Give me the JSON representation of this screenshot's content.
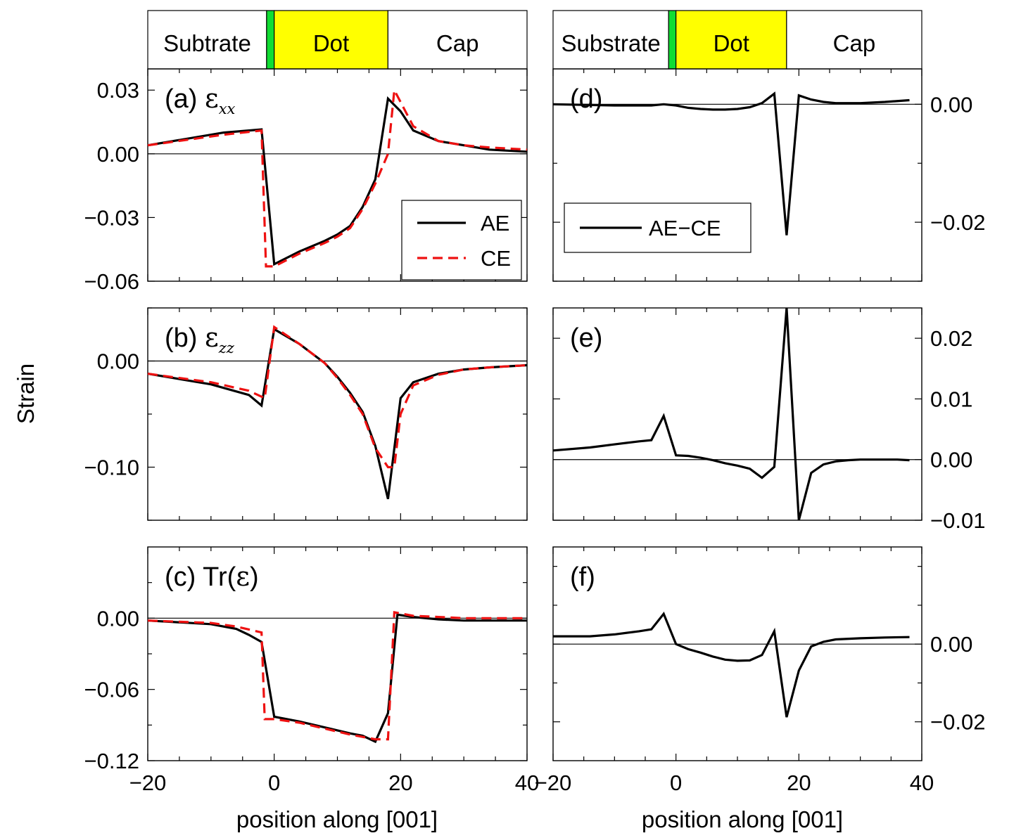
{
  "figure": {
    "ylabel": "Strain",
    "xlabel_left": "position along [001]",
    "xlabel_right": "position along [001]"
  },
  "colors": {
    "ae": "#000000",
    "ce": "#ee1111",
    "wetting_layer": "#11dd33",
    "dot_region": "#ffff00",
    "zero_line": "#000000"
  },
  "regions_left": [
    {
      "name": "Subtrate",
      "x0": -20,
      "x1": -1.2,
      "fill": "#ffffff"
    },
    {
      "name": "",
      "x0": -1.2,
      "x1": 0,
      "fill": "#11dd33"
    },
    {
      "name": "Dot",
      "x0": 0,
      "x1": 18,
      "fill": "#ffff00"
    },
    {
      "name": "Cap",
      "x0": 18,
      "x1": 40,
      "fill": "#ffffff"
    }
  ],
  "regions_right": [
    {
      "name": "Substrate",
      "x0": -20,
      "x1": -1.2,
      "fill": "#ffffff"
    },
    {
      "name": "",
      "x0": -1.2,
      "x1": 0,
      "fill": "#11dd33"
    },
    {
      "name": "Dot",
      "x0": 0,
      "x1": 18,
      "fill": "#ffff00"
    },
    {
      "name": "Cap",
      "x0": 18,
      "x1": 40,
      "fill": "#ffffff"
    }
  ],
  "legend_a": {
    "ae": "AE",
    "ce": "CE"
  },
  "legend_d": {
    "diff": "AE−CE"
  },
  "chart_data": [
    {
      "id": "a",
      "type": "line",
      "label_prefix": "(a) ",
      "label_symbol": "ε",
      "label_sub": "xx",
      "xlim": [
        -20,
        40
      ],
      "ylim": [
        -0.06,
        0.04
      ],
      "yticks": [
        0.03,
        0.0,
        -0.03,
        -0.06
      ],
      "yticklabels": [
        "0.03",
        "0.00",
        "−0.03",
        "−0.06"
      ],
      "xticks": [
        -20,
        0,
        20,
        40
      ],
      "xticklabels": [
        "",
        "",
        "",
        ""
      ],
      "series": [
        {
          "name": "AE",
          "style": "solid",
          "x": [
            -20,
            -8,
            -2,
            0,
            4,
            8,
            10,
            12,
            14,
            16,
            18,
            20,
            22,
            26,
            30,
            34,
            40
          ],
          "y": [
            0.004,
            0.01,
            0.0115,
            -0.052,
            -0.046,
            -0.041,
            -0.038,
            -0.034,
            -0.025,
            -0.012,
            0.026,
            0.02,
            0.011,
            0.006,
            0.004,
            0.002,
            0.001
          ]
        },
        {
          "name": "CE",
          "style": "dashed",
          "x": [
            -20,
            -8,
            -2,
            -1.3,
            0,
            4,
            8,
            10,
            12,
            14,
            16,
            18,
            19,
            22,
            26,
            30,
            34,
            40
          ],
          "y": [
            0.004,
            0.009,
            0.011,
            -0.053,
            -0.053,
            -0.047,
            -0.042,
            -0.039,
            -0.035,
            -0.026,
            -0.014,
            0.0,
            0.03,
            0.013,
            0.006,
            0.004,
            0.003,
            0.002
          ]
        }
      ]
    },
    {
      "id": "b",
      "type": "line",
      "label_prefix": "(b) ",
      "label_symbol": "ε",
      "label_sub": "zz",
      "xlim": [
        -20,
        40
      ],
      "ylim": [
        -0.15,
        0.05
      ],
      "yticks": [
        0.0,
        -0.1
      ],
      "yticklabels": [
        "0.00",
        "−0.10"
      ],
      "minor_yticks": [
        0.05,
        -0.05,
        -0.15
      ],
      "xticks": [
        -20,
        0,
        20,
        40
      ],
      "xticklabels": [
        "",
        "",
        "",
        ""
      ],
      "series": [
        {
          "name": "AE",
          "style": "solid",
          "x": [
            -20,
            -10,
            -4,
            -2,
            0,
            4,
            8,
            10,
            12,
            14,
            16,
            18,
            20,
            22,
            26,
            30,
            34,
            40
          ],
          "y": [
            -0.012,
            -0.022,
            -0.032,
            -0.042,
            0.03,
            0.016,
            -0.002,
            -0.015,
            -0.03,
            -0.048,
            -0.08,
            -0.13,
            -0.035,
            -0.02,
            -0.012,
            -0.008,
            -0.006,
            -0.004
          ]
        },
        {
          "name": "CE",
          "style": "dashed",
          "x": [
            -20,
            -10,
            -4,
            -1.5,
            0,
            4,
            8,
            10,
            12,
            14,
            16,
            18,
            19,
            20,
            22,
            26,
            30,
            34,
            40
          ],
          "y": [
            -0.012,
            -0.02,
            -0.028,
            -0.035,
            0.032,
            0.016,
            -0.002,
            -0.016,
            -0.032,
            -0.05,
            -0.082,
            -0.1,
            -0.1,
            -0.05,
            -0.023,
            -0.013,
            -0.008,
            -0.006,
            -0.004
          ]
        }
      ]
    },
    {
      "id": "c",
      "type": "line",
      "label_prefix": "(c) Tr(",
      "label_symbol": "ε",
      "label_sub": "",
      "label_suffix": ")",
      "xlim": [
        -20,
        40
      ],
      "ylim": [
        -0.12,
        0.06
      ],
      "yticks": [
        0.0,
        -0.06,
        -0.12
      ],
      "yticklabels": [
        "0.00",
        "−0.06",
        "−0.12"
      ],
      "minor_yticks": [
        0.03,
        -0.03,
        -0.09
      ],
      "xticks": [
        -20,
        0,
        20,
        40
      ],
      "xticklabels": [
        "−20",
        "0",
        "20",
        "40"
      ],
      "series": [
        {
          "name": "AE",
          "style": "solid",
          "x": [
            -20,
            -10,
            -6,
            -4,
            -2,
            0,
            4,
            8,
            12,
            14,
            16,
            18,
            19.5,
            22,
            26,
            30,
            34,
            40
          ],
          "y": [
            -0.002,
            -0.005,
            -0.009,
            -0.014,
            -0.02,
            -0.083,
            -0.087,
            -0.092,
            -0.097,
            -0.099,
            -0.104,
            -0.08,
            0.003,
            0.001,
            -0.001,
            -0.002,
            -0.002,
            -0.002
          ]
        },
        {
          "name": "CE",
          "style": "dashed",
          "x": [
            -20,
            -10,
            -6,
            -2,
            -1.5,
            0,
            4,
            8,
            12,
            14,
            16,
            18,
            19,
            22,
            26,
            30,
            34,
            40
          ],
          "y": [
            -0.002,
            -0.004,
            -0.007,
            -0.012,
            -0.085,
            -0.085,
            -0.088,
            -0.093,
            -0.098,
            -0.1,
            -0.102,
            -0.102,
            0.005,
            0.002,
            0.001,
            0.0,
            0.0,
            0.0
          ]
        }
      ]
    },
    {
      "id": "d",
      "type": "line",
      "label_prefix": "(d)",
      "label_symbol": "",
      "label_sub": "",
      "xlim": [
        -20,
        40
      ],
      "ylim": [
        -0.03,
        0.006
      ],
      "yticks": [
        0.0,
        -0.02
      ],
      "yticklabels": [
        "0.00",
        "−0.02"
      ],
      "minor_yticks": [
        -0.01,
        -0.03
      ],
      "xticks": [
        -20,
        0,
        20,
        40
      ],
      "xticklabels": [
        "",
        "",
        "",
        ""
      ],
      "series": [
        {
          "name": "AE−CE",
          "style": "solid",
          "x": [
            -20,
            -10,
            -4,
            -2,
            0,
            2,
            4,
            6,
            8,
            10,
            12,
            14,
            16,
            18,
            20,
            22,
            24,
            26,
            30,
            34,
            38
          ],
          "y": [
            0.0,
            -0.0002,
            -0.0002,
            0.0,
            -0.0002,
            -0.0006,
            -0.0008,
            -0.0009,
            -0.0009,
            -0.0008,
            -0.0005,
            0.0002,
            0.0018,
            -0.0222,
            0.0015,
            0.0008,
            0.0004,
            0.0002,
            0.0002,
            0.0004,
            0.0007
          ]
        }
      ]
    },
    {
      "id": "e",
      "type": "line",
      "label_prefix": "(e)",
      "label_symbol": "",
      "label_sub": "",
      "xlim": [
        -20,
        40
      ],
      "ylim": [
        -0.01,
        0.025
      ],
      "yticks": [
        0.02,
        0.01,
        0.0,
        -0.01
      ],
      "yticklabels": [
        "0.02",
        "0.01",
        "0.00",
        "−0.01"
      ],
      "xticks": [
        -20,
        0,
        20,
        40
      ],
      "xticklabels": [
        "",
        "",
        "",
        ""
      ],
      "series": [
        {
          "name": "AE−CE",
          "style": "solid",
          "x": [
            -20,
            -14,
            -10,
            -6,
            -4,
            -2,
            0,
            2,
            4,
            6,
            8,
            10,
            12,
            14,
            16,
            18,
            20,
            22,
            24,
            26,
            28,
            30,
            32,
            34,
            36,
            38
          ],
          "y": [
            0.0015,
            0.002,
            0.0025,
            0.003,
            0.0032,
            0.0072,
            0.0007,
            0.0006,
            0.0003,
            -0.0001,
            -0.0006,
            -0.001,
            -0.0015,
            -0.003,
            -0.0012,
            0.025,
            -0.01,
            -0.0022,
            -0.0008,
            -0.0003,
            -0.0001,
            0.0,
            0.0,
            0.0,
            0.0,
            -0.0001
          ]
        }
      ]
    },
    {
      "id": "f",
      "type": "line",
      "label_prefix": "(f)",
      "label_symbol": "",
      "label_sub": "",
      "xlim": [
        -20,
        40
      ],
      "ylim": [
        -0.03,
        0.025
      ],
      "yticks": [
        0.0,
        -0.02
      ],
      "yticklabels": [
        "0.00",
        "−0.02"
      ],
      "minor_yticks": [
        0.02,
        0.01,
        -0.01
      ],
      "xticks": [
        -20,
        0,
        20,
        40
      ],
      "xticklabels": [
        "−20",
        "0",
        "20",
        "40"
      ],
      "series": [
        {
          "name": "AE−CE",
          "style": "solid",
          "x": [
            -20,
            -14,
            -10,
            -6,
            -4,
            -2,
            0,
            2,
            4,
            6,
            8,
            10,
            12,
            14,
            16,
            18,
            20,
            22,
            24,
            26,
            30,
            34,
            38
          ],
          "y": [
            0.002,
            0.002,
            0.0025,
            0.0033,
            0.0038,
            0.0078,
            0.0,
            -0.0013,
            -0.0022,
            -0.0032,
            -0.004,
            -0.0043,
            -0.0042,
            -0.0028,
            0.0033,
            -0.0188,
            -0.0068,
            -0.0006,
            0.0006,
            0.0012,
            0.0015,
            0.0017,
            0.0018
          ]
        }
      ]
    }
  ]
}
